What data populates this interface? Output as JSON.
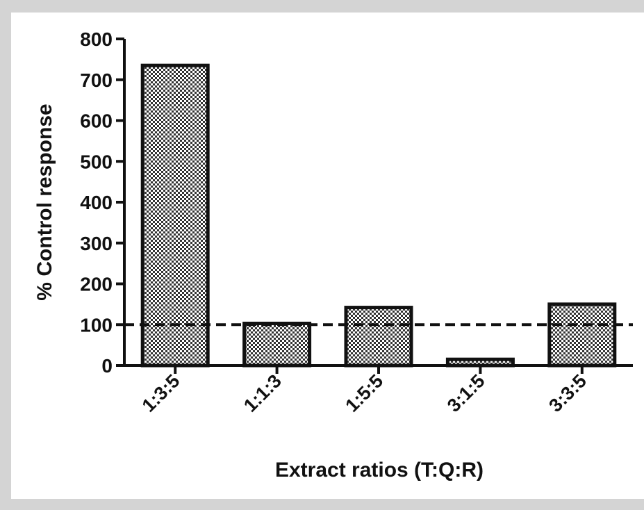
{
  "chart_data": {
    "type": "bar",
    "title": "",
    "xlabel": "Extract ratios (T:Q:R)",
    "ylabel": "% Control response",
    "categories": [
      "1:3:5",
      "1:1:3",
      "1:5:5",
      "3:1:5",
      "3:3:5"
    ],
    "values": [
      735,
      103,
      142,
      15,
      150
    ],
    "ylim": [
      0,
      800
    ],
    "yticks": [
      "0",
      "100",
      "200",
      "300",
      "400",
      "500",
      "600",
      "700",
      "800"
    ],
    "reference_line": 100,
    "grid": false,
    "legend": "none",
    "colors": {
      "bar_fill": "#9a9a9a",
      "bar_pattern": "checkerboard",
      "bar_stroke": "#111111",
      "background": "#ffffff",
      "border": "#d4d4d4"
    }
  }
}
